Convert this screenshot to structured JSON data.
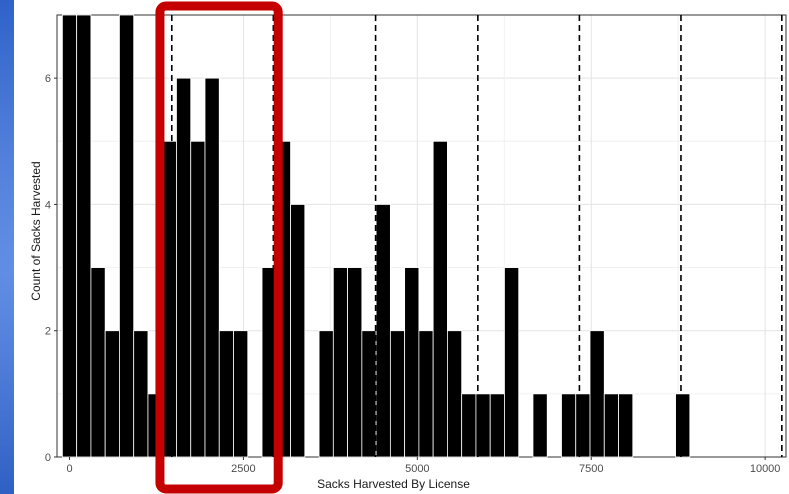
{
  "chart_data": {
    "type": "bar",
    "xlabel": "Sacks Harvested By License",
    "ylabel": "Count of Sacks Harvested",
    "xlim": [
      -180,
      10300
    ],
    "ylim": [
      0,
      7
    ],
    "x_ticks": [
      "0",
      "2500",
      "5000",
      "7500",
      "10000"
    ],
    "y_ticks": [
      "0",
      "2",
      "4",
      "6"
    ],
    "bin_width": 205,
    "bins": [
      {
        "x": 0,
        "count": 7
      },
      {
        "x": 205,
        "count": 7
      },
      {
        "x": 410,
        "count": 3
      },
      {
        "x": 615,
        "count": 2
      },
      {
        "x": 820,
        "count": 7
      },
      {
        "x": 1025,
        "count": 2
      },
      {
        "x": 1230,
        "count": 1
      },
      {
        "x": 1435,
        "count": 5
      },
      {
        "x": 1640,
        "count": 6
      },
      {
        "x": 1845,
        "count": 5
      },
      {
        "x": 2050,
        "count": 6
      },
      {
        "x": 2255,
        "count": 2
      },
      {
        "x": 2460,
        "count": 2
      },
      {
        "x": 2870,
        "count": 3
      },
      {
        "x": 3075,
        "count": 5
      },
      {
        "x": 3280,
        "count": 4
      },
      {
        "x": 3690,
        "count": 2
      },
      {
        "x": 3895,
        "count": 3
      },
      {
        "x": 4100,
        "count": 3
      },
      {
        "x": 4305,
        "count": 2
      },
      {
        "x": 4510,
        "count": 4
      },
      {
        "x": 4715,
        "count": 2
      },
      {
        "x": 4920,
        "count": 3
      },
      {
        "x": 5125,
        "count": 2
      },
      {
        "x": 5330,
        "count": 5
      },
      {
        "x": 5535,
        "count": 2
      },
      {
        "x": 5740,
        "count": 1
      },
      {
        "x": 5945,
        "count": 1
      },
      {
        "x": 6150,
        "count": 1
      },
      {
        "x": 6355,
        "count": 3
      },
      {
        "x": 6765,
        "count": 1
      },
      {
        "x": 7175,
        "count": 1
      },
      {
        "x": 7380,
        "count": 1
      },
      {
        "x": 7585,
        "count": 2
      },
      {
        "x": 7790,
        "count": 1
      },
      {
        "x": 7995,
        "count": 1
      },
      {
        "x": 8815,
        "count": 1
      }
    ],
    "vlines": [
      1470,
      2930,
      4400,
      5870,
      7330,
      8790,
      10240
    ],
    "highlight": {
      "x_from": 1300,
      "x_to": 3000,
      "color": "#c40000"
    },
    "grid": true,
    "bar_color": "#000000"
  }
}
